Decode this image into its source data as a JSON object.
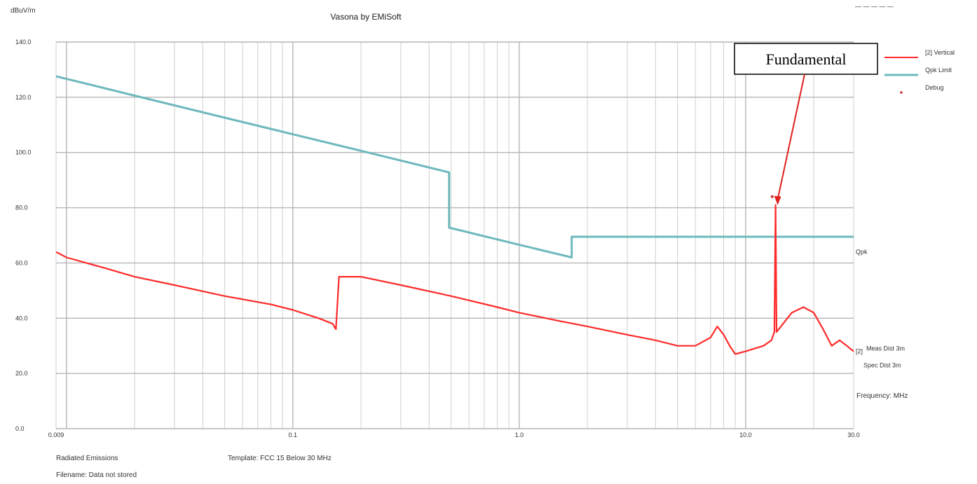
{
  "chart_data": {
    "type": "line",
    "title": "Vasona by EMiSoft",
    "top_right_text": "— — — — —",
    "ylabel": "dBuV/m",
    "xlabel": "Frequency: MHz",
    "x_scale": "log",
    "xlim": [
      0.009,
      30
    ],
    "ylim": [
      0,
      140
    ],
    "y_ticks": [
      0,
      20,
      40,
      60,
      80,
      100,
      120,
      140
    ],
    "y_tick_labels": [
      "0.0",
      "20.0",
      "40.0",
      "60.0",
      "80.0",
      "100.0",
      "120.0",
      "140.0"
    ],
    "x_tick_labels": [
      {
        "x": 0.009,
        "label": "0.009"
      },
      {
        "x": 0.1,
        "label": "0.1"
      },
      {
        "x": 1,
        "label": "1.0"
      },
      {
        "x": 10,
        "label": "10.0"
      },
      {
        "x": 30,
        "label": "30.0"
      }
    ],
    "grid": true,
    "legend_position": "top-right",
    "legend": [
      {
        "label": "[2] Vertical",
        "color": "#ff2a2a",
        "symbol": "line"
      },
      {
        "label": "Qpk Limit",
        "color": "#6fb8bc",
        "symbol": "line"
      },
      {
        "label": "Debug",
        "color": "#cc3333",
        "symbol": "dot"
      }
    ],
    "series": [
      {
        "name": "Qpk Limit",
        "color": "#6fb8bc",
        "x": [
          0.009,
          0.02,
          0.05,
          0.1,
          0.2,
          0.49,
          0.49,
          1.0,
          1.705,
          1.705,
          30
        ],
        "y": [
          127.6,
          120.6,
          112.6,
          106.6,
          100.6,
          92.8,
          72.8,
          66.6,
          62.0,
          69.5,
          69.5
        ]
      },
      {
        "name": "[2] Vertical",
        "color": "#ff2a2a",
        "x": [
          0.009,
          0.01,
          0.015,
          0.02,
          0.03,
          0.05,
          0.08,
          0.1,
          0.13,
          0.15,
          0.155,
          0.16,
          0.2,
          0.3,
          0.5,
          0.8,
          1.0,
          1.5,
          2.0,
          3.0,
          4.0,
          5.0,
          6.0,
          7.0,
          7.5,
          8.0,
          8.5,
          9.0,
          10.0,
          12.0,
          13.0,
          13.4,
          13.56,
          13.7,
          14.0,
          16.0,
          18.0,
          20.0,
          22.0,
          24.0,
          26.0,
          28.0,
          30.0
        ],
        "y": [
          64,
          62,
          58,
          55,
          52,
          48,
          45,
          43,
          40,
          38,
          36,
          55,
          55,
          52,
          48,
          44,
          42,
          39,
          37,
          34,
          32,
          30,
          30,
          33,
          37,
          34,
          30,
          27,
          28,
          30,
          32,
          35,
          81,
          35,
          36,
          42,
          44,
          42,
          36,
          30,
          32,
          30,
          28
        ]
      }
    ],
    "debug_point": {
      "x": 13.1,
      "y": 84
    },
    "annotations": [
      {
        "text": "Fundamental",
        "target_x": 13.56,
        "target_y": 81
      }
    ],
    "right_labels": [
      {
        "text": "Qpk",
        "y": 64
      },
      {
        "text": "[2]",
        "y": 28
      },
      {
        "text": "Meas Dist 3m",
        "y": 29
      },
      {
        "text": "Spec Dist 3m",
        "y": 23
      }
    ]
  },
  "footer": {
    "test_name": "Radiated Emissions",
    "template": "Template: FCC 15 Below 30 MHz",
    "filename": "Filename: Data not stored"
  }
}
